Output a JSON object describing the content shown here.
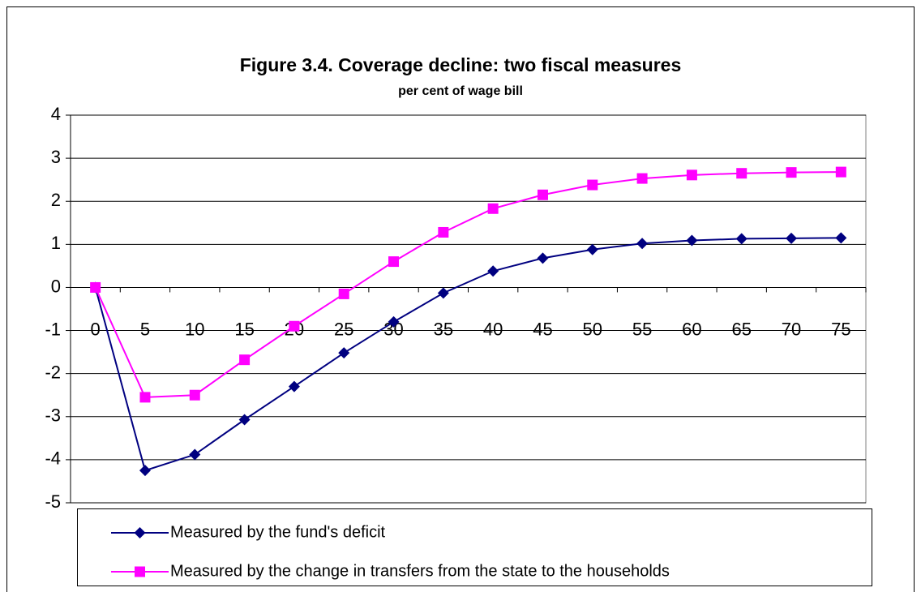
{
  "chart_data": {
    "type": "line",
    "title": "Figure 3.4. Coverage decline: two fiscal measures",
    "subtitle": "per cent of wage bill",
    "categories": [
      "0",
      "5",
      "10",
      "15",
      "20",
      "25",
      "30",
      "35",
      "40",
      "45",
      "50",
      "55",
      "60",
      "65",
      "70",
      "75"
    ],
    "series": [
      {
        "name": "Measured by the fund's deficit",
        "color": "#000080",
        "marker": "diamond",
        "values": [
          0,
          -4.25,
          -3.88,
          -3.07,
          -2.3,
          -1.52,
          -0.8,
          -0.13,
          0.38,
          0.68,
          0.88,
          1.02,
          1.09,
          1.13,
          1.14,
          1.15
        ]
      },
      {
        "name": "Measured by the change in transfers from the state to the households",
        "color": "#ff00ff",
        "marker": "square",
        "values": [
          0,
          -2.55,
          -2.5,
          -1.68,
          -0.9,
          -0.15,
          0.6,
          1.28,
          1.83,
          2.15,
          2.38,
          2.53,
          2.61,
          2.65,
          2.67,
          2.68
        ]
      }
    ],
    "ylim": [
      -5,
      4
    ],
    "yticks": [
      -5,
      -4,
      -3,
      -2,
      -1,
      0,
      1,
      2,
      3,
      4
    ],
    "grid": true,
    "legend": "bottom"
  }
}
